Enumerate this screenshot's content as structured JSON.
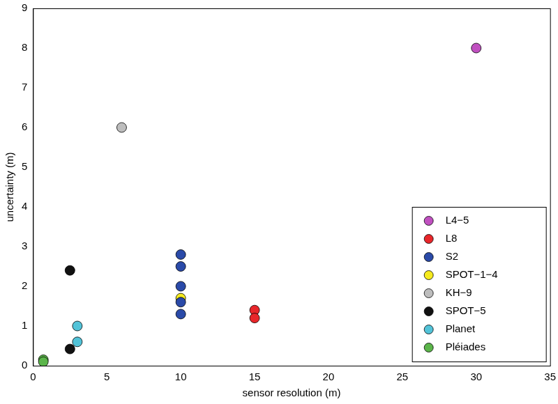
{
  "chart_data": {
    "type": "scatter",
    "x_label": "sensor resolution (m)",
    "y_label": "uncertainty (m)",
    "xlim": [
      0,
      35
    ],
    "xticks": [
      0,
      5,
      10,
      15,
      20,
      25,
      30,
      35
    ],
    "ylim": [
      0,
      9
    ],
    "yticks": [
      0,
      1,
      2,
      3,
      4,
      5,
      6,
      7,
      8,
      9
    ],
    "grid": false,
    "legend": "lower right",
    "marker": "circle",
    "series": [
      {
        "name": "L4−5",
        "color": "#c050c0",
        "x": [
          30
        ],
        "values": [
          8
        ]
      },
      {
        "name": "L8",
        "color": "#e8262a",
        "x": [
          15,
          15
        ],
        "values": [
          1.4,
          1.2
        ]
      },
      {
        "name": "S2",
        "color": "#2a4aa8",
        "x": [
          10,
          10,
          10,
          10,
          10
        ],
        "values": [
          2.8,
          2.5,
          2.0,
          1.6,
          1.3
        ]
      },
      {
        "name": "SPOT−1−4",
        "color": "#f5ea1e",
        "x": [
          10
        ],
        "values": [
          1.7
        ]
      },
      {
        "name": "KH−9",
        "color": "#bdbdbd",
        "x": [
          6
        ],
        "values": [
          6
        ]
      },
      {
        "name": "SPOT−5",
        "color": "#111111",
        "x": [
          2.5,
          2.5
        ],
        "values": [
          2.4,
          0.42
        ]
      },
      {
        "name": "Planet",
        "color": "#52c3d8",
        "x": [
          3,
          3
        ],
        "values": [
          1.0,
          0.6
        ]
      },
      {
        "name": "Pléiades",
        "color": "#5bb54a",
        "x": [
          0.7,
          0.7
        ],
        "values": [
          0.15,
          0.1
        ]
      }
    ]
  }
}
